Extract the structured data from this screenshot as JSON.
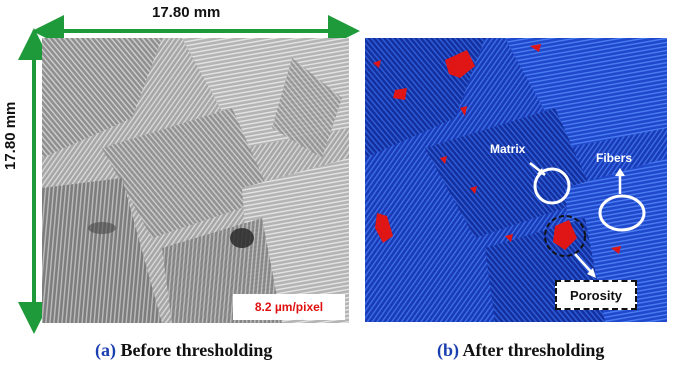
{
  "panel_a": {
    "dimension_top": "17.80 mm",
    "dimension_left": "17.80 mm",
    "scale_label": "8.2 µm/pixel",
    "caption_tag": "(a)",
    "caption_text": " Before thresholding"
  },
  "panel_b": {
    "matrix_label": "Matrix",
    "fibers_label": "Fibers",
    "porosity_label": "Porosity",
    "caption_tag": "(b)",
    "caption_text": " After thresholding"
  },
  "colors": {
    "dimension_arrow": "#1f9a3a",
    "scale_text": "#e01010",
    "matrix_blue": "#1b42c6",
    "pore_red": "#e01515",
    "caption_tag": "#1a3fb0"
  }
}
